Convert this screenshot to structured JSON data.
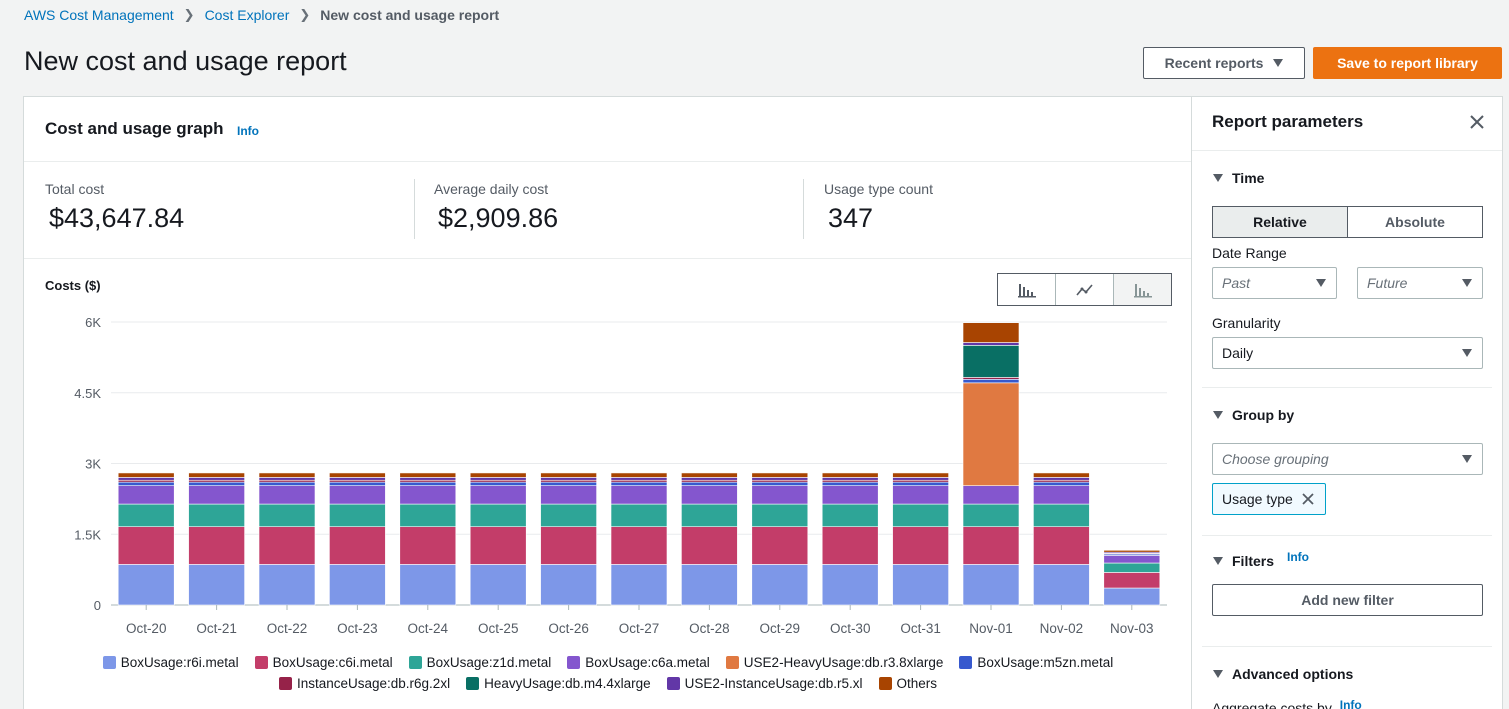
{
  "breadcrumb": {
    "items": [
      "AWS Cost Management",
      "Cost Explorer"
    ],
    "current": "New cost and usage report"
  },
  "page": {
    "title": "New cost and usage report",
    "recent_reports_label": "Recent reports",
    "save_label": "Save to report library"
  },
  "graph": {
    "title": "Cost and usage graph",
    "info_label": "Info",
    "costs_label": "Costs ($)",
    "stats": [
      {
        "label": "Total cost",
        "value": "$43,647.84"
      },
      {
        "label": "Average daily cost",
        "value": "$2,909.86"
      },
      {
        "label": "Usage type count",
        "value": "347"
      }
    ]
  },
  "chart_data": {
    "type": "stacked-bar",
    "xlabel": "",
    "ylabel": "Costs ($)",
    "ylim": [
      0,
      6000
    ],
    "yticks": [
      0,
      1500,
      3000,
      4500,
      6000
    ],
    "ytick_labels": [
      "0",
      "1.5K",
      "3K",
      "4.5K",
      "6K"
    ],
    "grid": true,
    "categories": [
      "Oct-20",
      "Oct-21",
      "Oct-22",
      "Oct-23",
      "Oct-24",
      "Oct-25",
      "Oct-26",
      "Oct-27",
      "Oct-28",
      "Oct-29",
      "Oct-30",
      "Oct-31",
      "Nov-01",
      "Nov-02",
      "Nov-03"
    ],
    "series": [
      {
        "name": "BoxUsage:r6i.metal",
        "color": "#7d97e8",
        "values": [
          860,
          860,
          860,
          860,
          860,
          860,
          860,
          860,
          860,
          860,
          860,
          860,
          860,
          860,
          360
        ]
      },
      {
        "name": "BoxUsage:c6i.metal",
        "color": "#c33d69",
        "values": [
          800,
          800,
          800,
          800,
          800,
          800,
          800,
          800,
          800,
          800,
          800,
          800,
          800,
          800,
          330
        ]
      },
      {
        "name": "BoxUsage:z1d.metal",
        "color": "#2ea597",
        "values": [
          480,
          480,
          480,
          480,
          480,
          480,
          480,
          480,
          480,
          480,
          480,
          480,
          480,
          480,
          200
        ]
      },
      {
        "name": "BoxUsage:c6a.metal",
        "color": "#8456ce",
        "values": [
          390,
          390,
          390,
          390,
          390,
          390,
          390,
          390,
          390,
          390,
          390,
          390,
          390,
          390,
          160
        ]
      },
      {
        "name": "USE2-HeavyUsage:db.r3.8xlarge",
        "color": "#e07941",
        "values": [
          0,
          0,
          0,
          0,
          0,
          0,
          0,
          0,
          0,
          0,
          0,
          0,
          2180,
          0,
          0
        ]
      },
      {
        "name": "BoxUsage:m5zn.metal",
        "color": "#3759ce",
        "values": [
          75,
          75,
          75,
          75,
          75,
          75,
          75,
          75,
          75,
          75,
          75,
          75,
          75,
          75,
          30
        ]
      },
      {
        "name": "InstanceUsage:db.r6g.2xl",
        "color": "#962249",
        "values": [
          40,
          40,
          40,
          40,
          40,
          40,
          40,
          40,
          40,
          40,
          40,
          40,
          40,
          40,
          15
        ]
      },
      {
        "name": "HeavyUsage:db.m4.4xlarge",
        "color": "#096f64",
        "values": [
          0,
          0,
          0,
          0,
          0,
          0,
          0,
          0,
          0,
          0,
          0,
          0,
          680,
          0,
          0
        ]
      },
      {
        "name": "USE2-InstanceUsage:db.r5.xl",
        "color": "#6237a7",
        "values": [
          60,
          60,
          60,
          60,
          60,
          60,
          60,
          60,
          60,
          60,
          60,
          60,
          60,
          60,
          25
        ]
      },
      {
        "name": "Others",
        "color": "#a84401",
        "values": [
          95,
          95,
          95,
          95,
          95,
          95,
          95,
          95,
          95,
          95,
          95,
          95,
          420,
          95,
          40
        ]
      }
    ]
  },
  "legend_rows": [
    [
      "BoxUsage:r6i.metal",
      "BoxUsage:c6i.metal",
      "BoxUsage:z1d.metal",
      "BoxUsage:c6a.metal",
      "USE2-HeavyUsage:db.r3.8xlarge",
      "BoxUsage:m5zn.metal"
    ],
    [
      "InstanceUsage:db.r6g.2xl",
      "HeavyUsage:db.m4.4xlarge",
      "USE2-InstanceUsage:db.r5.xl",
      "Others"
    ]
  ],
  "params": {
    "title": "Report parameters",
    "time": {
      "heading": "Time",
      "relative_label": "Relative",
      "absolute_label": "Absolute",
      "date_range_label": "Date Range",
      "past_placeholder": "Past",
      "future_placeholder": "Future",
      "granularity_label": "Granularity",
      "granularity_value": "Daily"
    },
    "group_by": {
      "heading": "Group by",
      "placeholder": "Choose grouping",
      "token": "Usage type"
    },
    "filters": {
      "heading": "Filters",
      "info_label": "Info",
      "add_label": "Add new filter"
    },
    "advanced": {
      "heading": "Advanced options",
      "aggregate_label": "Aggregate costs by",
      "info_label": "Info"
    }
  }
}
